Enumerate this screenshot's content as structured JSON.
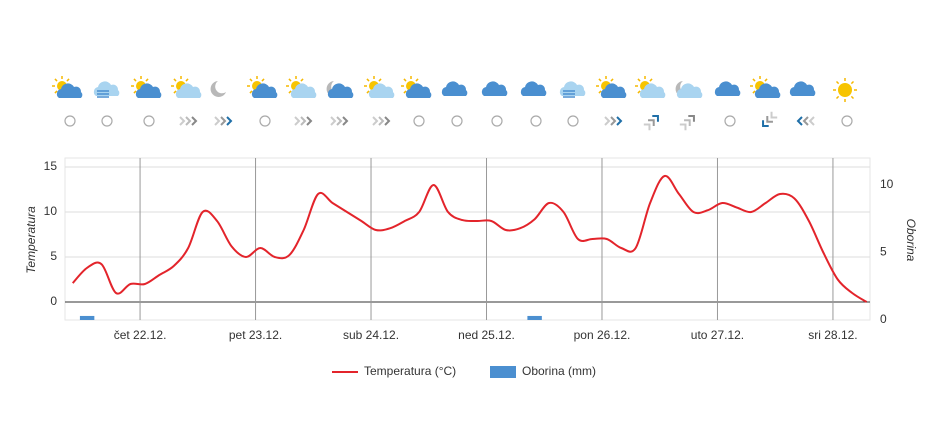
{
  "chart_data": {
    "type": "line-bar",
    "y_label": "Temperatura",
    "y2_label": "Oborina",
    "x": [
      10,
      13,
      16,
      19,
      22,
      25,
      28,
      31,
      34,
      37,
      40,
      43,
      46,
      49,
      52,
      55,
      58,
      61,
      64,
      67,
      70,
      73,
      76,
      79,
      82,
      85,
      88,
      91,
      94,
      97,
      100,
      103,
      106,
      109,
      112,
      115,
      118,
      121,
      124,
      127,
      130,
      133,
      136,
      139,
      142,
      145,
      148,
      151,
      154,
      157,
      160,
      163,
      166,
      169,
      172,
      175
    ],
    "series": [
      {
        "name": "Temperatura (°C)",
        "color": "#e3242b",
        "kind": "line",
        "values": [
          2.1,
          3.8,
          4.2,
          1.0,
          2.0,
          2.0,
          3.0,
          4.0,
          6.0,
          10.0,
          9.0,
          6.2,
          5.0,
          6.0,
          5.0,
          5.2,
          8.0,
          12.0,
          11.0,
          10.0,
          9.0,
          8.0,
          8.2,
          9.0,
          10.0,
          13.0,
          10.0,
          9.1,
          9.0,
          9.0,
          8.0,
          8.2,
          9.2,
          11.0,
          10.0,
          7.0,
          7.0,
          7.0,
          6.0,
          6.0,
          11.0,
          14.0,
          12.0,
          10.0,
          10.2,
          11.0,
          10.5,
          10.0,
          11.0,
          12.0,
          11.5,
          9.0,
          5.5,
          2.5,
          1.0,
          0.0
        ]
      },
      {
        "name": "Oborina (mm)",
        "color": "#4b8fd0",
        "kind": "bar",
        "axis": "y2",
        "values": [
          0,
          0.3,
          0,
          0,
          0,
          0,
          0,
          0,
          0,
          0,
          0,
          0,
          0,
          0,
          0,
          0,
          0,
          0,
          0,
          0,
          0,
          0,
          0,
          0,
          0,
          0,
          0,
          0,
          0,
          0,
          0,
          0,
          0.3,
          0,
          0,
          0,
          0,
          0,
          0,
          0,
          0,
          0,
          0,
          0,
          0,
          0,
          0,
          0,
          0,
          0,
          0,
          0,
          0,
          0,
          0,
          0
        ]
      }
    ],
    "xlim": [
      8.4,
      175.7
    ],
    "xticks": [
      {
        "value": 24,
        "label": "čet 22.12."
      },
      {
        "value": 48,
        "label": "pet 23.12."
      },
      {
        "value": 72,
        "label": "sub 24.12."
      },
      {
        "value": 96,
        "label": "ned 25.12."
      },
      {
        "value": 120,
        "label": "pon 26.12."
      },
      {
        "value": 144,
        "label": "uto 27.12."
      },
      {
        "value": 168,
        "label": "sri 28.12."
      }
    ],
    "ylim": [
      -2,
      16
    ],
    "yticks": [
      0,
      5,
      10,
      15
    ],
    "y2lim": [
      0,
      12
    ],
    "y2ticks": [
      0,
      5,
      10
    ],
    "grid": true
  }
}
